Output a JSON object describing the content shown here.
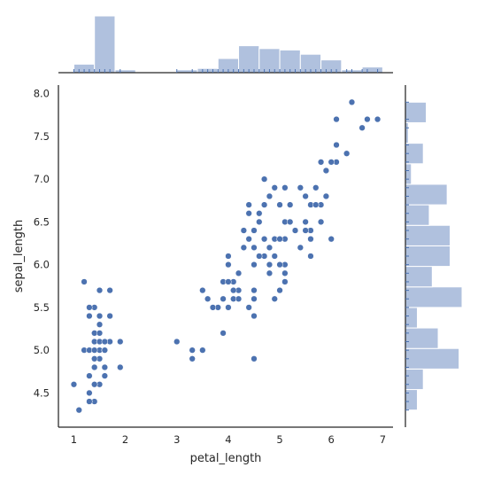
{
  "chart_data": {
    "type": "scatter",
    "kind": "jointplot",
    "xlabel": "petal_length",
    "ylabel": "sepal_length",
    "xlim": [
      0.7,
      7.2
    ],
    "ylim": [
      4.1,
      8.1
    ],
    "xticks": [
      1,
      2,
      3,
      4,
      5,
      6,
      7
    ],
    "yticks": [
      4.5,
      5.0,
      5.5,
      6.0,
      6.5,
      7.0,
      7.5,
      8.0
    ],
    "grid": false,
    "colors": {
      "points": "#4c72b0",
      "hist_fill": "#b0c1de",
      "hist_edge": "#ffffff",
      "rug": "#4c72b0",
      "axis": "#262626"
    },
    "points": [
      {
        "x": 1.4,
        "y": 5.1
      },
      {
        "x": 1.4,
        "y": 4.9
      },
      {
        "x": 1.3,
        "y": 4.7
      },
      {
        "x": 1.5,
        "y": 4.6
      },
      {
        "x": 1.4,
        "y": 5.0
      },
      {
        "x": 1.7,
        "y": 5.4
      },
      {
        "x": 1.4,
        "y": 4.6
      },
      {
        "x": 1.5,
        "y": 5.0
      },
      {
        "x": 1.4,
        "y": 4.4
      },
      {
        "x": 1.5,
        "y": 4.9
      },
      {
        "x": 1.5,
        "y": 5.4
      },
      {
        "x": 1.6,
        "y": 4.8
      },
      {
        "x": 1.4,
        "y": 4.8
      },
      {
        "x": 1.1,
        "y": 4.3
      },
      {
        "x": 1.2,
        "y": 5.8
      },
      {
        "x": 1.5,
        "y": 5.7
      },
      {
        "x": 1.3,
        "y": 5.4
      },
      {
        "x": 1.4,
        "y": 5.1
      },
      {
        "x": 1.7,
        "y": 5.7
      },
      {
        "x": 1.5,
        "y": 5.1
      },
      {
        "x": 1.7,
        "y": 5.4
      },
      {
        "x": 1.5,
        "y": 5.1
      },
      {
        "x": 1.0,
        "y": 4.6
      },
      {
        "x": 1.7,
        "y": 5.1
      },
      {
        "x": 1.9,
        "y": 4.8
      },
      {
        "x": 1.6,
        "y": 5.0
      },
      {
        "x": 1.6,
        "y": 5.0
      },
      {
        "x": 1.5,
        "y": 5.2
      },
      {
        "x": 1.4,
        "y": 5.2
      },
      {
        "x": 1.6,
        "y": 4.7
      },
      {
        "x": 1.6,
        "y": 4.8
      },
      {
        "x": 1.5,
        "y": 5.4
      },
      {
        "x": 1.5,
        "y": 5.2
      },
      {
        "x": 1.4,
        "y": 5.5
      },
      {
        "x": 1.5,
        "y": 4.9
      },
      {
        "x": 1.2,
        "y": 5.0
      },
      {
        "x": 1.3,
        "y": 5.5
      },
      {
        "x": 1.4,
        "y": 4.9
      },
      {
        "x": 1.3,
        "y": 4.4
      },
      {
        "x": 1.5,
        "y": 5.1
      },
      {
        "x": 1.3,
        "y": 5.0
      },
      {
        "x": 1.3,
        "y": 4.5
      },
      {
        "x": 1.3,
        "y": 4.4
      },
      {
        "x": 1.6,
        "y": 5.0
      },
      {
        "x": 1.9,
        "y": 5.1
      },
      {
        "x": 1.4,
        "y": 4.8
      },
      {
        "x": 1.6,
        "y": 5.1
      },
      {
        "x": 1.4,
        "y": 4.6
      },
      {
        "x": 1.5,
        "y": 5.3
      },
      {
        "x": 1.4,
        "y": 5.0
      },
      {
        "x": 4.7,
        "y": 7.0
      },
      {
        "x": 4.5,
        "y": 6.4
      },
      {
        "x": 4.9,
        "y": 6.9
      },
      {
        "x": 4.0,
        "y": 5.5
      },
      {
        "x": 4.6,
        "y": 6.5
      },
      {
        "x": 4.5,
        "y": 5.7
      },
      {
        "x": 4.7,
        "y": 6.3
      },
      {
        "x": 3.3,
        "y": 4.9
      },
      {
        "x": 4.6,
        "y": 6.6
      },
      {
        "x": 3.9,
        "y": 5.2
      },
      {
        "x": 3.5,
        "y": 5.0
      },
      {
        "x": 4.2,
        "y": 5.9
      },
      {
        "x": 4.0,
        "y": 6.0
      },
      {
        "x": 4.7,
        "y": 6.1
      },
      {
        "x": 3.6,
        "y": 5.6
      },
      {
        "x": 4.4,
        "y": 6.7
      },
      {
        "x": 4.5,
        "y": 5.6
      },
      {
        "x": 4.1,
        "y": 5.8
      },
      {
        "x": 4.5,
        "y": 6.2
      },
      {
        "x": 3.9,
        "y": 5.6
      },
      {
        "x": 4.8,
        "y": 5.9
      },
      {
        "x": 4.0,
        "y": 6.1
      },
      {
        "x": 4.9,
        "y": 6.3
      },
      {
        "x": 4.7,
        "y": 6.1
      },
      {
        "x": 4.3,
        "y": 6.4
      },
      {
        "x": 4.4,
        "y": 6.6
      },
      {
        "x": 4.8,
        "y": 6.8
      },
      {
        "x": 5.0,
        "y": 6.7
      },
      {
        "x": 4.5,
        "y": 6.0
      },
      {
        "x": 3.5,
        "y": 5.7
      },
      {
        "x": 3.8,
        "y": 5.5
      },
      {
        "x": 3.7,
        "y": 5.5
      },
      {
        "x": 3.9,
        "y": 5.8
      },
      {
        "x": 5.1,
        "y": 6.0
      },
      {
        "x": 4.5,
        "y": 5.4
      },
      {
        "x": 4.5,
        "y": 6.0
      },
      {
        "x": 4.7,
        "y": 6.7
      },
      {
        "x": 4.4,
        "y": 6.3
      },
      {
        "x": 4.1,
        "y": 5.6
      },
      {
        "x": 4.0,
        "y": 5.5
      },
      {
        "x": 4.4,
        "y": 5.5
      },
      {
        "x": 4.6,
        "y": 6.1
      },
      {
        "x": 4.0,
        "y": 5.8
      },
      {
        "x": 3.3,
        "y": 5.0
      },
      {
        "x": 4.2,
        "y": 5.6
      },
      {
        "x": 4.2,
        "y": 5.7
      },
      {
        "x": 4.2,
        "y": 5.7
      },
      {
        "x": 4.3,
        "y": 6.2
      },
      {
        "x": 3.0,
        "y": 5.1
      },
      {
        "x": 4.1,
        "y": 5.7
      },
      {
        "x": 6.0,
        "y": 6.3
      },
      {
        "x": 5.1,
        "y": 5.8
      },
      {
        "x": 5.9,
        "y": 7.1
      },
      {
        "x": 5.6,
        "y": 6.3
      },
      {
        "x": 5.8,
        "y": 6.5
      },
      {
        "x": 6.6,
        "y": 7.6
      },
      {
        "x": 4.5,
        "y": 4.9
      },
      {
        "x": 6.3,
        "y": 7.3
      },
      {
        "x": 5.8,
        "y": 6.7
      },
      {
        "x": 6.1,
        "y": 7.2
      },
      {
        "x": 5.1,
        "y": 6.5
      },
      {
        "x": 5.3,
        "y": 6.4
      },
      {
        "x": 5.5,
        "y": 6.8
      },
      {
        "x": 5.0,
        "y": 5.7
      },
      {
        "x": 5.1,
        "y": 5.8
      },
      {
        "x": 5.3,
        "y": 6.4
      },
      {
        "x": 5.5,
        "y": 6.5
      },
      {
        "x": 6.7,
        "y": 7.7
      },
      {
        "x": 6.9,
        "y": 7.7
      },
      {
        "x": 5.0,
        "y": 6.0
      },
      {
        "x": 5.7,
        "y": 6.9
      },
      {
        "x": 4.9,
        "y": 5.6
      },
      {
        "x": 6.7,
        "y": 7.7
      },
      {
        "x": 4.9,
        "y": 6.3
      },
      {
        "x": 5.7,
        "y": 6.7
      },
      {
        "x": 6.0,
        "y": 7.2
      },
      {
        "x": 4.8,
        "y": 6.2
      },
      {
        "x": 4.9,
        "y": 6.1
      },
      {
        "x": 5.6,
        "y": 6.4
      },
      {
        "x": 5.8,
        "y": 7.2
      },
      {
        "x": 6.1,
        "y": 7.4
      },
      {
        "x": 6.4,
        "y": 7.9
      },
      {
        "x": 5.6,
        "y": 6.4
      },
      {
        "x": 5.1,
        "y": 6.3
      },
      {
        "x": 5.6,
        "y": 6.1
      },
      {
        "x": 6.1,
        "y": 7.7
      },
      {
        "x": 5.6,
        "y": 6.3
      },
      {
        "x": 5.5,
        "y": 6.4
      },
      {
        "x": 4.8,
        "y": 6.0
      },
      {
        "x": 5.4,
        "y": 6.9
      },
      {
        "x": 5.6,
        "y": 6.7
      },
      {
        "x": 5.1,
        "y": 6.9
      },
      {
        "x": 5.1,
        "y": 5.8
      },
      {
        "x": 5.9,
        "y": 6.8
      },
      {
        "x": 5.7,
        "y": 6.7
      },
      {
        "x": 5.2,
        "y": 6.7
      },
      {
        "x": 5.0,
        "y": 6.3
      },
      {
        "x": 5.2,
        "y": 6.5
      },
      {
        "x": 5.4,
        "y": 6.2
      },
      {
        "x": 5.1,
        "y": 5.9
      }
    ],
    "x_hist": {
      "edges": [
        1.0,
        1.4,
        1.8,
        2.2,
        2.6,
        3.0,
        3.4,
        3.8,
        4.2,
        4.6,
        5.0,
        5.4,
        5.8,
        6.2,
        6.6,
        7.0
      ],
      "counts": [
        6,
        40,
        2,
        0,
        0,
        2,
        3,
        10,
        19,
        17,
        16,
        13,
        9,
        2,
        4
      ]
    },
    "y_hist": {
      "edges": [
        4.3,
        4.54,
        4.78,
        5.02,
        5.26,
        5.5,
        5.74,
        5.98,
        6.22,
        6.46,
        6.7,
        6.94,
        7.18,
        7.42,
        7.66,
        7.9
      ],
      "counts": [
        4,
        6,
        18,
        11,
        4,
        19,
        9,
        15,
        15,
        8,
        14,
        2,
        6,
        1,
        7
      ]
    }
  }
}
